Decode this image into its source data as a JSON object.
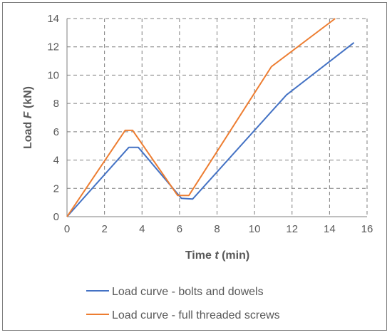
{
  "chart_data": {
    "type": "line",
    "title": "",
    "xlabel": {
      "prefix": "Time ",
      "var": "t",
      "suffix": " (min)"
    },
    "ylabel": {
      "prefix": "Load ",
      "var": "F",
      "suffix": " (kN)"
    },
    "xlim": [
      0,
      16
    ],
    "ylim": [
      0,
      14
    ],
    "xticks": [
      0,
      2,
      4,
      6,
      8,
      10,
      12,
      14,
      16
    ],
    "yticks": [
      0,
      2,
      4,
      6,
      8,
      10,
      12,
      14
    ],
    "grid": true,
    "legend_position": "bottom",
    "series": [
      {
        "name": "Load curve - bolts and dowels",
        "color": "#4472c4",
        "points": [
          [
            0,
            0
          ],
          [
            3.3,
            4.9
          ],
          [
            3.8,
            4.9
          ],
          [
            6.1,
            1.3
          ],
          [
            6.7,
            1.25
          ],
          [
            11.7,
            8.6
          ],
          [
            15.3,
            12.3
          ]
        ]
      },
      {
        "name": "Load curve - full threaded screws",
        "color": "#ed7d31",
        "points": [
          [
            0,
            0
          ],
          [
            3.1,
            6.1
          ],
          [
            3.5,
            6.1
          ],
          [
            5.9,
            1.5
          ],
          [
            6.5,
            1.5
          ],
          [
            10.9,
            10.6
          ],
          [
            14.3,
            14.0
          ]
        ]
      }
    ]
  }
}
